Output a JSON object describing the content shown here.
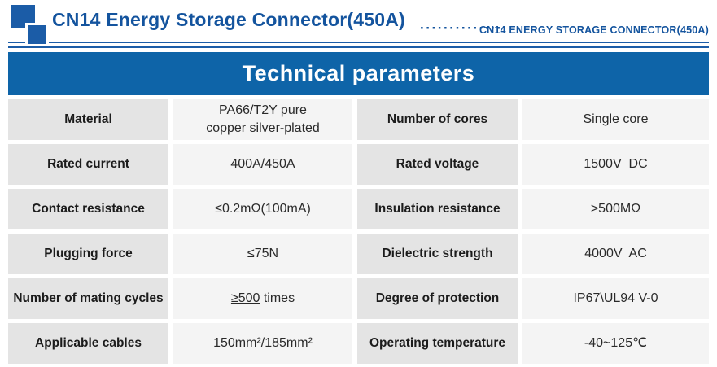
{
  "header": {
    "title": "CN14 Energy Storage Connector(450A)",
    "dots": "··············",
    "subtitle": "CN14 ENERGY STORAGE CONNECTOR(450A)"
  },
  "banner": {
    "title": "Technical parameters"
  },
  "colors": {
    "brand_blue": "#1b5ca7",
    "title_blue": "#14549e",
    "banner_blue": "#0e64a8",
    "label_cell_gray": "#e4e4e4",
    "value_cell_gray": "#f4f4f4"
  },
  "table": {
    "rows": [
      {
        "param1": "Material",
        "value1": "PA66/T2Y pure\ncopper silver-plated",
        "param2": "Number of cores",
        "value2": "Single core"
      },
      {
        "param1": "Rated current",
        "value1": "400A/450A",
        "param2": "Rated voltage",
        "value2": "1500V  DC"
      },
      {
        "param1": "Contact resistance",
        "value1": "≤0.2mΩ(100mA)",
        "param2": "Insulation resistance",
        "value2": ">500MΩ"
      },
      {
        "param1": "Plugging force",
        "value1": "≤75N",
        "param2": "Dielectric strength",
        "value2": "4000V  AC"
      },
      {
        "param1": "Number of mating cycles",
        "value1_main": "≥500",
        "value1_suffix": " times",
        "param2": "Degree of protection",
        "value2": "IP67\\UL94 V-0"
      },
      {
        "param1": "Applicable cables",
        "value1": "150mm²/185mm²",
        "param2": "Operating temperature",
        "value2": "-40~125℃"
      }
    ]
  }
}
